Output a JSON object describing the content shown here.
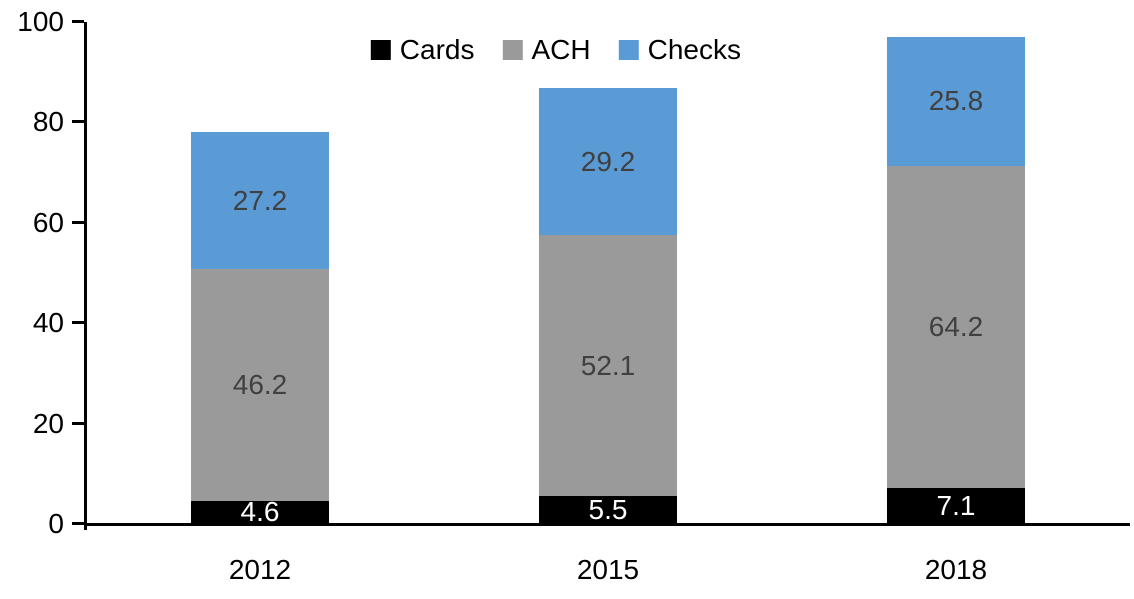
{
  "chart_data": {
    "type": "bar",
    "stacked": true,
    "title": "",
    "xlabel": "",
    "ylabel": "",
    "categories": [
      "2012",
      "2015",
      "2018"
    ],
    "series": [
      {
        "name": "Cards",
        "color": "#000000",
        "label_color": "#ffffff",
        "values": [
          4.6,
          5.5,
          7.1
        ]
      },
      {
        "name": "ACH",
        "color": "#9A9A9A",
        "label_color": "#404040",
        "values": [
          46.2,
          52.1,
          64.2
        ]
      },
      {
        "name": "Checks",
        "color": "#5B9BD5",
        "label_color": "#404040",
        "values": [
          27.2,
          29.2,
          25.8
        ]
      }
    ],
    "totals": [
      78.0,
      86.8,
      97.1
    ],
    "ylim": [
      0,
      100
    ],
    "yticks": [
      0,
      20,
      40,
      60,
      80,
      100
    ],
    "grid": false,
    "legend_position": "top-center",
    "value_label_decimals": 1
  }
}
